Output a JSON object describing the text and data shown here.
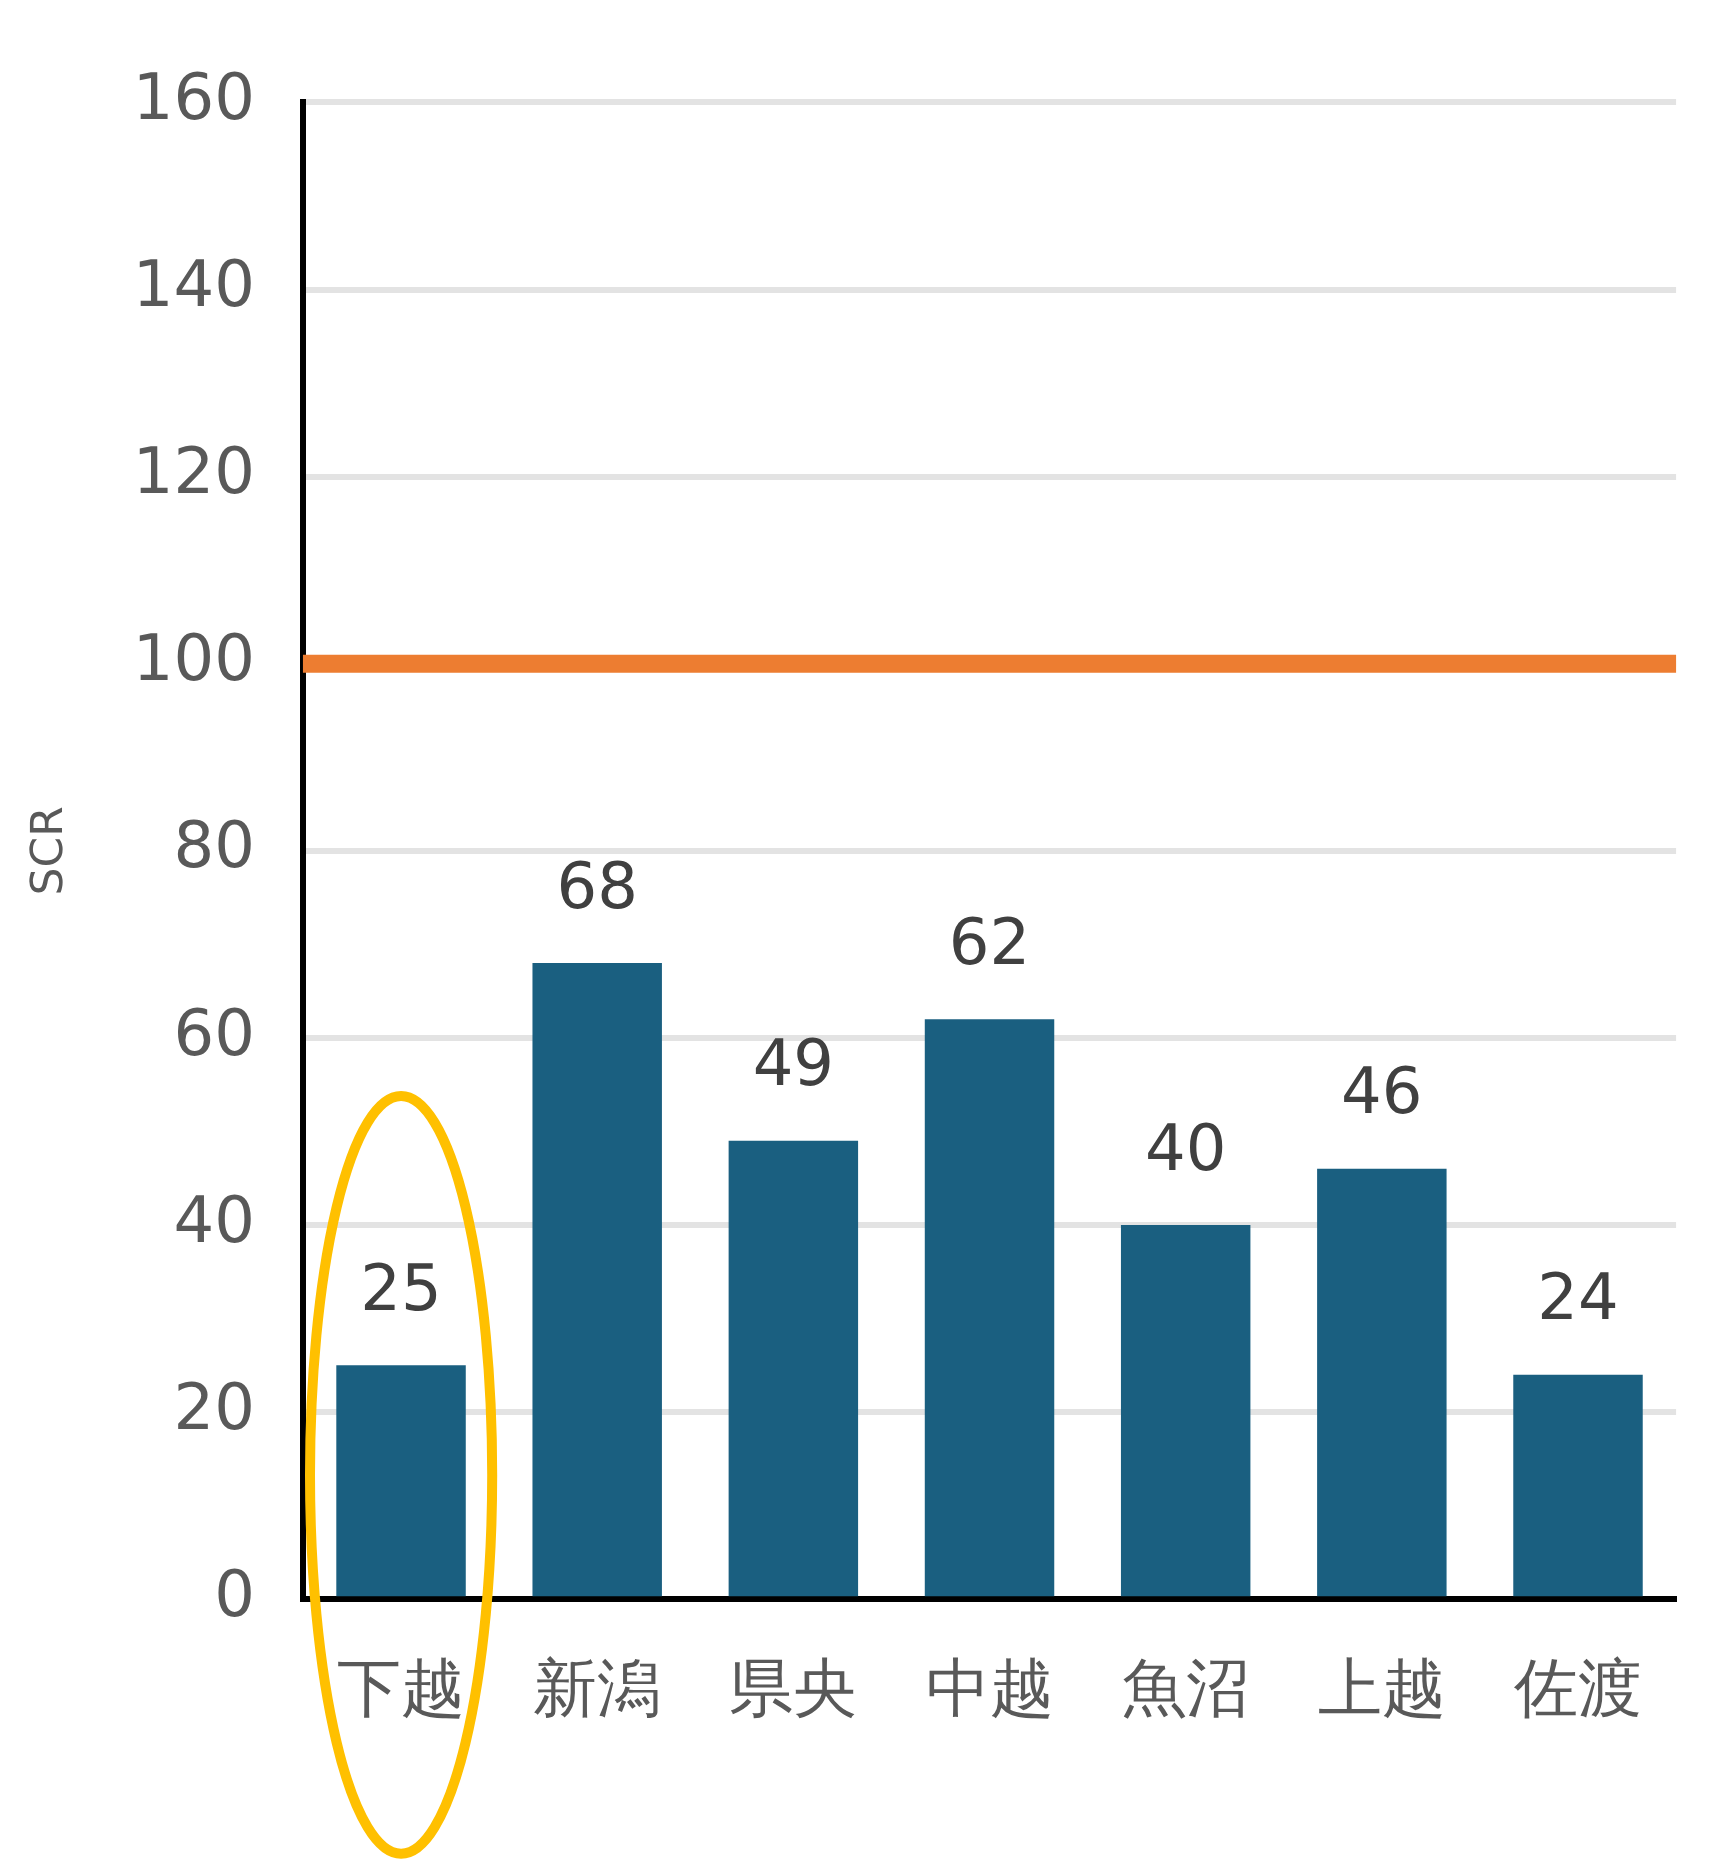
{
  "chart_data": {
    "type": "bar",
    "ylabel": "SCR",
    "categories": [
      "下越",
      "新潟",
      "県央",
      "中越",
      "魚沼",
      "上越",
      "佐渡"
    ],
    "values": [
      25,
      68,
      49,
      62,
      40,
      46,
      24
    ],
    "color": "#1a5f80",
    "ylim": [
      0,
      160
    ],
    "yticks": [
      0,
      20,
      40,
      60,
      80,
      100,
      120,
      140,
      160
    ],
    "grid": "y",
    "data_labels": true,
    "legend": false,
    "ref_lines": [
      {
        "axis": "y",
        "value": 100,
        "color": "#ed7d31"
      }
    ]
  }
}
